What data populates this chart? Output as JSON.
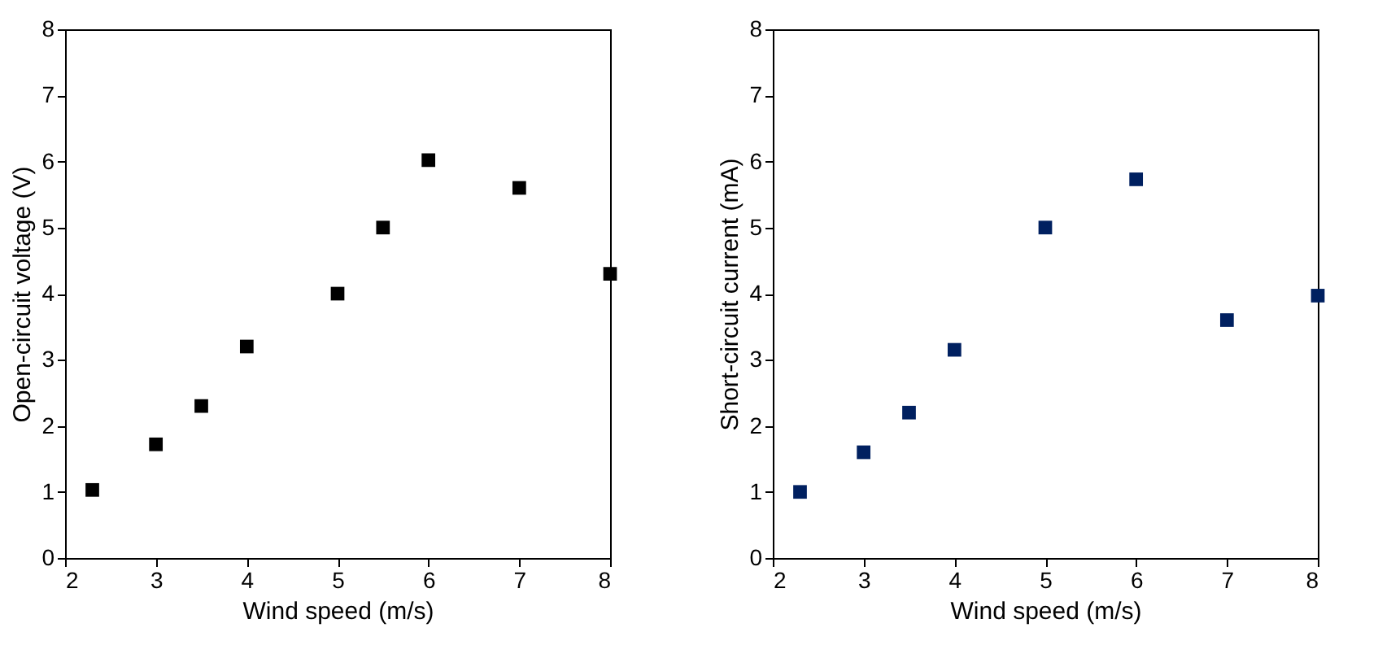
{
  "chart_data": [
    {
      "type": "scatter",
      "xlabel": "Wind speed (m/s)",
      "ylabel": "Open-circuit voltage (V)",
      "xlim": [
        2,
        8
      ],
      "ylim": [
        0,
        8
      ],
      "xticks": [
        2,
        3,
        4,
        5,
        6,
        7,
        8
      ],
      "yticks": [
        0,
        1,
        2,
        3,
        4,
        5,
        6,
        7,
        8
      ],
      "grid": false,
      "marker": "square",
      "x": [
        2.3,
        3,
        3.5,
        4,
        5,
        5.5,
        6,
        7,
        8
      ],
      "series": [
        {
          "color": "#000000",
          "values": [
            1.03,
            1.72,
            2.3,
            3.2,
            4.0,
            5.0,
            6.02,
            5.6,
            4.3
          ]
        }
      ]
    },
    {
      "type": "scatter",
      "xlabel": "Wind speed (m/s)",
      "ylabel": "Short-circuit current (mA)",
      "xlim": [
        2,
        8
      ],
      "ylim": [
        0,
        8
      ],
      "xticks": [
        2,
        3,
        4,
        5,
        6,
        7,
        8
      ],
      "yticks": [
        0,
        1,
        2,
        3,
        4,
        5,
        6,
        7,
        8
      ],
      "grid": false,
      "marker": "square",
      "x": [
        2.3,
        3,
        3.5,
        4,
        5,
        6,
        7,
        8
      ],
      "series": [
        {
          "color": "#002060",
          "values": [
            1.0,
            1.6,
            2.2,
            3.15,
            5.0,
            5.73,
            3.6,
            3.97
          ]
        }
      ]
    }
  ]
}
